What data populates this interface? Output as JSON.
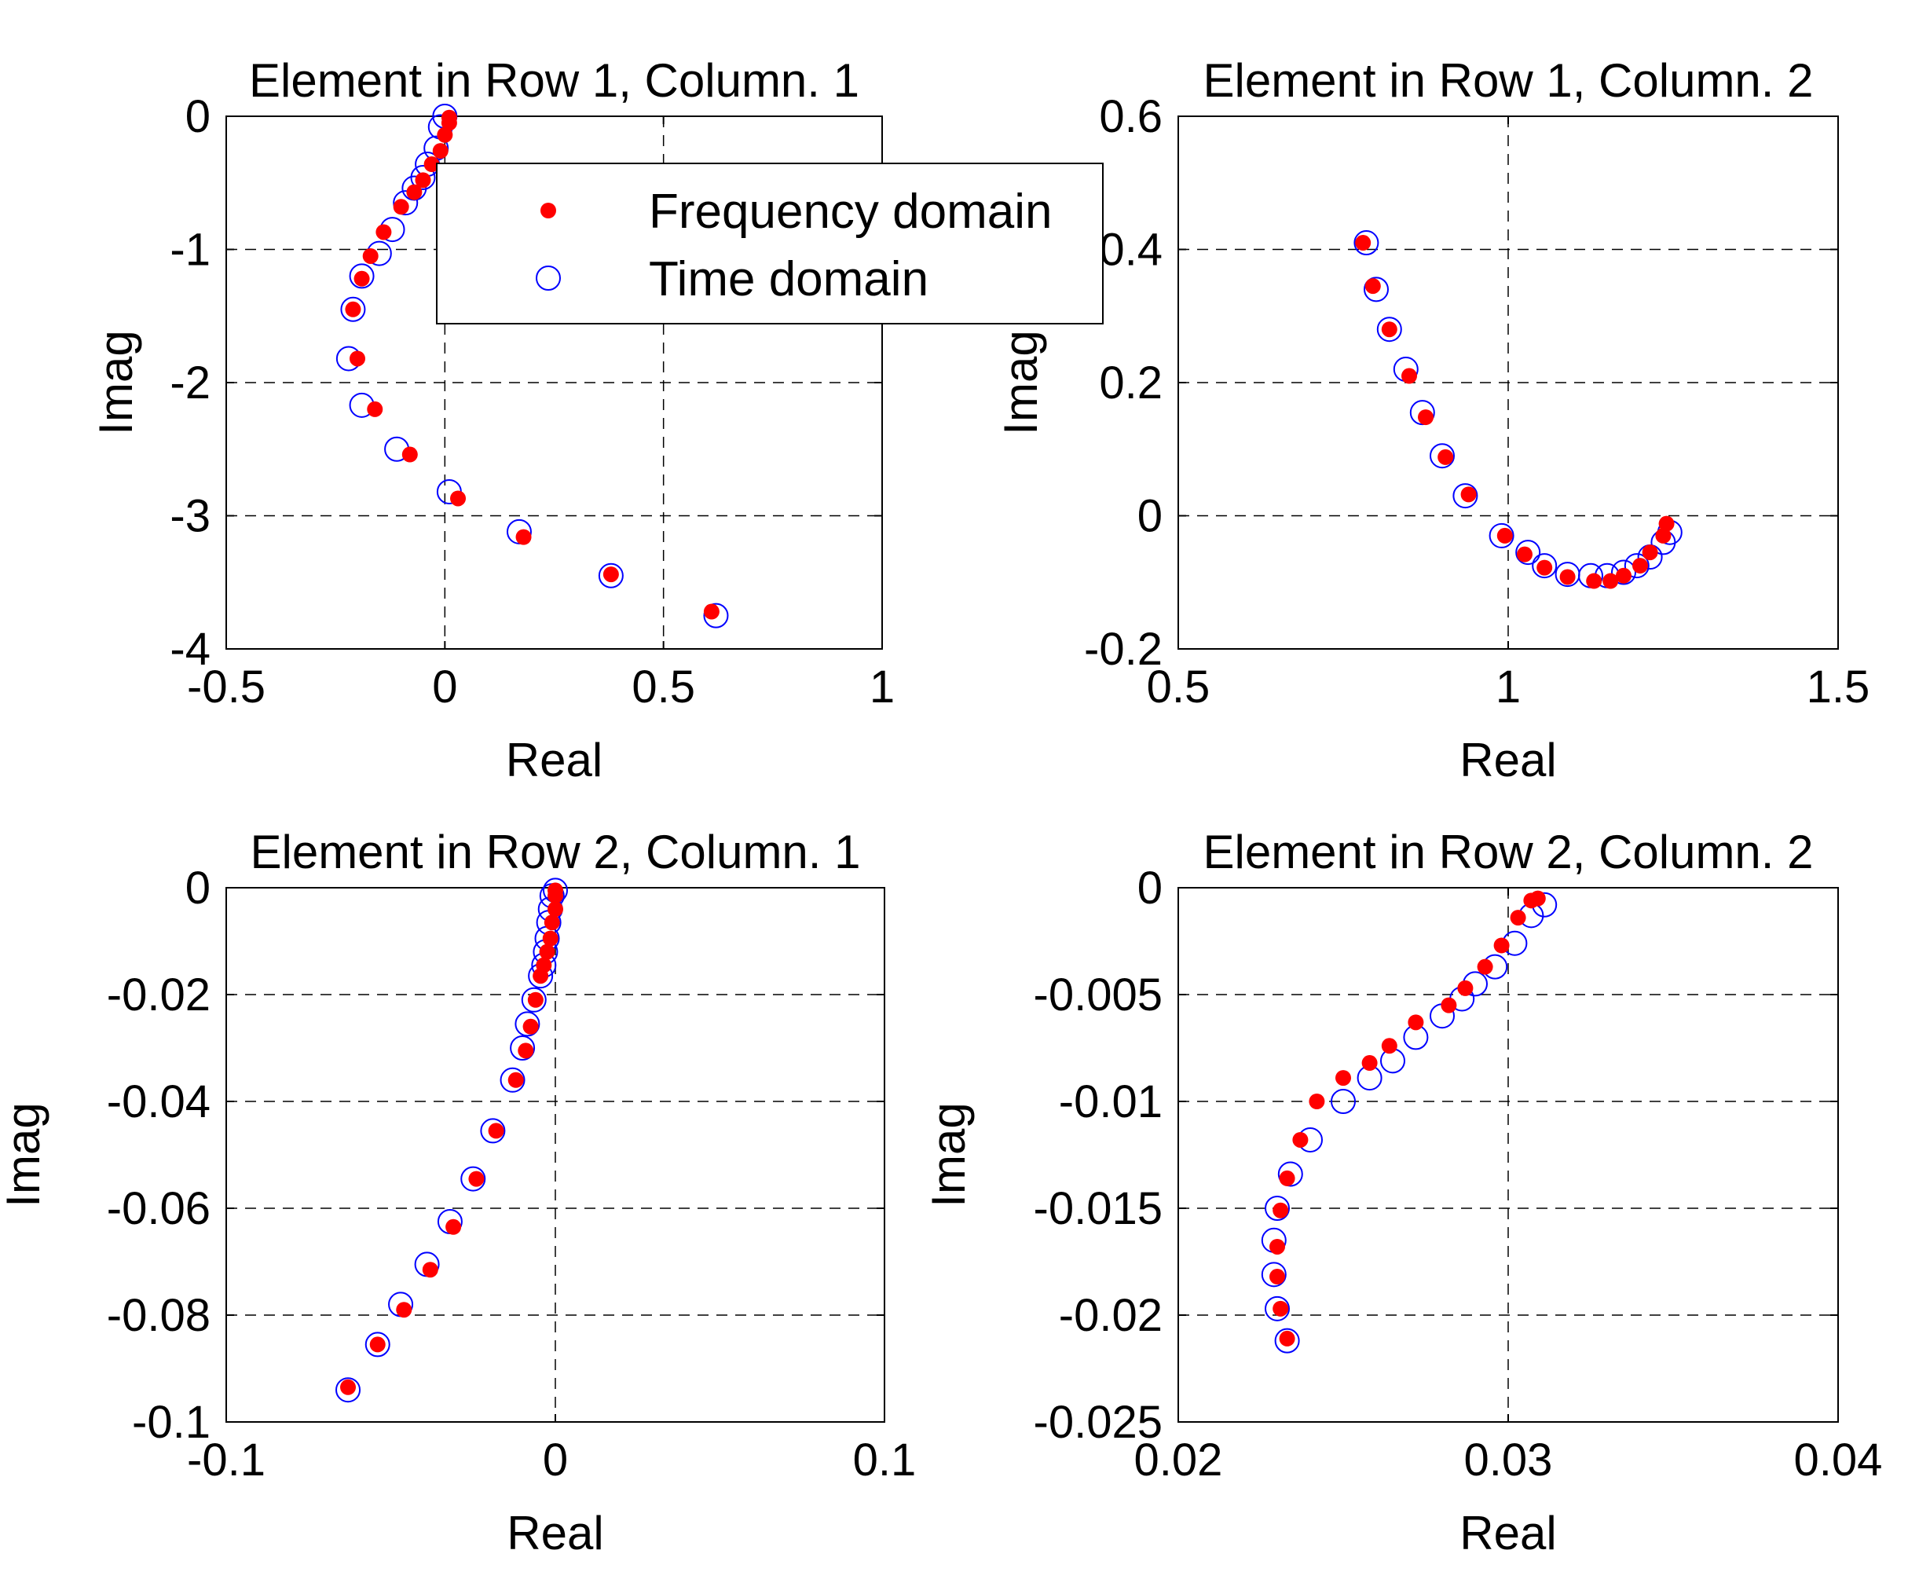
{
  "legend": {
    "items": [
      {
        "label": "Frequency domain",
        "marker": "filled-dot",
        "color": "#ff0000"
      },
      {
        "label": "Time domain",
        "marker": "open-circle",
        "color": "#0000ff"
      }
    ]
  },
  "chart_data": [
    {
      "type": "scatter",
      "title": "Element in Row 1, Column. 1",
      "xlabel": "Real",
      "ylabel": "Imag",
      "xlim": [
        -0.5,
        1
      ],
      "ylim": [
        -4,
        0
      ],
      "xticks": [
        -0.5,
        0,
        0.5,
        1
      ],
      "xtick_labels": [
        "-0.5",
        "0",
        "0.5",
        "1"
      ],
      "yticks": [
        -4,
        -3,
        -2,
        -1,
        0
      ],
      "ytick_labels": [
        "-4",
        "-3",
        "-2",
        "-1",
        "0"
      ],
      "grid": true,
      "series": [
        {
          "name": "Frequency domain",
          "color": "#ff0000",
          "marker": "filled-dot",
          "x": [
            0.61,
            0.38,
            0.18,
            0.03,
            -0.08,
            -0.16,
            -0.2,
            -0.21,
            -0.19,
            -0.17,
            -0.14,
            -0.1,
            -0.07,
            -0.05,
            -0.03,
            -0.01,
            0.0,
            0.01,
            0.01
          ],
          "y": [
            -3.72,
            -3.44,
            -3.16,
            -2.87,
            -2.54,
            -2.2,
            -1.82,
            -1.45,
            -1.22,
            -1.05,
            -0.87,
            -0.68,
            -0.57,
            -0.48,
            -0.36,
            -0.26,
            -0.14,
            -0.05,
            -0.01
          ]
        },
        {
          "name": "Time domain",
          "color": "#0000ff",
          "marker": "open-circle",
          "x": [
            0.62,
            0.38,
            0.17,
            0.01,
            -0.11,
            -0.19,
            -0.22,
            -0.21,
            -0.19,
            -0.15,
            -0.12,
            -0.09,
            -0.07,
            -0.05,
            -0.04,
            -0.02,
            -0.01,
            0.0
          ],
          "y": [
            -3.75,
            -3.45,
            -3.12,
            -2.82,
            -2.5,
            -2.17,
            -1.82,
            -1.45,
            -1.2,
            -1.03,
            -0.85,
            -0.65,
            -0.54,
            -0.46,
            -0.36,
            -0.24,
            -0.08,
            0.0
          ]
        }
      ]
    },
    {
      "type": "scatter",
      "title": "Element in Row 1, Column. 2",
      "xlabel": "Real",
      "ylabel": "Imag",
      "xlim": [
        0.5,
        1.5
      ],
      "ylim": [
        -0.2,
        0.6
      ],
      "xticks": [
        0.5,
        1,
        1.5
      ],
      "xtick_labels": [
        "0.5",
        "1",
        "1.5"
      ],
      "yticks": [
        -0.2,
        0,
        0.2,
        0.4,
        0.6
      ],
      "ytick_labels": [
        "-0.2",
        "0",
        "0.2",
        "0.4",
        "0.6"
      ],
      "grid": true,
      "series": [
        {
          "name": "Frequency domain",
          "color": "#ff0000",
          "marker": "filled-dot",
          "x": [
            0.78,
            0.795,
            0.82,
            0.85,
            0.875,
            0.905,
            0.94,
            0.995,
            1.025,
            1.055,
            1.09,
            1.13,
            1.155,
            1.175,
            1.2,
            1.215,
            1.235,
            1.24
          ],
          "y": [
            0.41,
            0.345,
            0.28,
            0.21,
            0.148,
            0.088,
            0.032,
            -0.03,
            -0.058,
            -0.078,
            -0.092,
            -0.098,
            -0.098,
            -0.09,
            -0.075,
            -0.055,
            -0.03,
            -0.012
          ]
        },
        {
          "name": "Time domain",
          "color": "#0000ff",
          "marker": "open-circle",
          "x": [
            0.785,
            0.8,
            0.82,
            0.845,
            0.87,
            0.9,
            0.935,
            0.99,
            1.03,
            1.055,
            1.09,
            1.125,
            1.15,
            1.175,
            1.195,
            1.215,
            1.235,
            1.245
          ],
          "y": [
            0.41,
            0.34,
            0.28,
            0.22,
            0.155,
            0.09,
            0.03,
            -0.03,
            -0.055,
            -0.075,
            -0.088,
            -0.09,
            -0.09,
            -0.085,
            -0.075,
            -0.062,
            -0.04,
            -0.025
          ]
        }
      ]
    },
    {
      "type": "scatter",
      "title": "Element in Row 2, Column. 1",
      "xlabel": "Real",
      "ylabel": "Imag",
      "xlim": [
        -0.1,
        0.1
      ],
      "ylim": [
        -0.1,
        0
      ],
      "xticks": [
        -0.1,
        0,
        0.1
      ],
      "xtick_labels": [
        "-0.1",
        "0",
        "0.1"
      ],
      "yticks": [
        -0.1,
        -0.08,
        -0.06,
        -0.04,
        -0.02,
        0
      ],
      "ytick_labels": [
        "-0.1",
        "-0.08",
        "-0.06",
        "-0.04",
        "-0.02",
        "0"
      ],
      "grid": true,
      "series": [
        {
          "name": "Frequency domain",
          "color": "#ff0000",
          "marker": "filled-dot",
          "x": [
            -0.063,
            -0.054,
            -0.046,
            -0.038,
            -0.031,
            -0.024,
            -0.018,
            -0.012,
            -0.009,
            -0.0075,
            -0.006,
            -0.0045,
            -0.0035,
            -0.0025,
            -0.0015,
            -0.001,
            0.0,
            0.0,
            0.0
          ],
          "y": [
            -0.0935,
            -0.0855,
            -0.079,
            -0.0715,
            -0.0635,
            -0.0545,
            -0.0455,
            -0.036,
            -0.0305,
            -0.026,
            -0.021,
            -0.0165,
            -0.0145,
            -0.012,
            -0.0095,
            -0.0065,
            -0.004,
            -0.0015,
            -0.0005
          ]
        },
        {
          "name": "Time domain",
          "color": "#0000ff",
          "marker": "open-circle",
          "x": [
            -0.063,
            -0.054,
            -0.047,
            -0.039,
            -0.032,
            -0.025,
            -0.019,
            -0.013,
            -0.01,
            -0.0085,
            -0.0065,
            -0.0045,
            -0.0035,
            -0.003,
            -0.0025,
            -0.002,
            -0.0015,
            -0.001,
            0.0
          ],
          "y": [
            -0.094,
            -0.0855,
            -0.078,
            -0.0705,
            -0.0625,
            -0.0545,
            -0.0455,
            -0.036,
            -0.03,
            -0.0255,
            -0.021,
            -0.0165,
            -0.0145,
            -0.012,
            -0.0095,
            -0.0065,
            -0.004,
            -0.0015,
            -0.0005
          ]
        }
      ]
    },
    {
      "type": "scatter",
      "title": "Element in Row 2, Column. 2",
      "xlabel": "Real",
      "ylabel": "Imag",
      "xlim": [
        0.02,
        0.04
      ],
      "ylim": [
        -0.025,
        0
      ],
      "xticks": [
        0.02,
        0.03,
        0.04
      ],
      "xtick_labels": [
        "0.02",
        "0.03",
        "0.04"
      ],
      "yticks": [
        -0.025,
        -0.02,
        -0.015,
        -0.01,
        -0.005,
        0
      ],
      "ytick_labels": [
        "-0.025",
        "-0.02",
        "-0.015",
        "-0.01",
        "-0.005",
        "0"
      ],
      "grid": true,
      "series": [
        {
          "name": "Frequency domain",
          "color": "#ff0000",
          "marker": "filled-dot",
          "x": [
            0.0233,
            0.0231,
            0.023,
            0.023,
            0.0231,
            0.0233,
            0.0237,
            0.0242,
            0.025,
            0.0258,
            0.0264,
            0.0272,
            0.0282,
            0.0287,
            0.0293,
            0.0298,
            0.0303,
            0.0307,
            0.0309
          ],
          "y": [
            -0.0211,
            -0.0197,
            -0.0182,
            -0.0168,
            -0.0151,
            -0.0136,
            -0.0118,
            -0.01,
            -0.0089,
            -0.0082,
            -0.0074,
            -0.0063,
            -0.0055,
            -0.0047,
            -0.0037,
            -0.0027,
            -0.0014,
            -0.0006,
            -0.0005
          ]
        },
        {
          "name": "Time domain",
          "color": "#0000ff",
          "marker": "open-circle",
          "x": [
            0.0233,
            0.023,
            0.0229,
            0.0229,
            0.023,
            0.0234,
            0.024,
            0.025,
            0.0258,
            0.0265,
            0.0272,
            0.028,
            0.0286,
            0.029,
            0.0296,
            0.0302,
            0.0307,
            0.0311
          ],
          "y": [
            -0.0212,
            -0.0197,
            -0.0181,
            -0.0165,
            -0.015,
            -0.0134,
            -0.0118,
            -0.01,
            -0.0089,
            -0.0081,
            -0.007,
            -0.006,
            -0.0052,
            -0.0045,
            -0.0037,
            -0.0026,
            -0.0013,
            -0.0008
          ]
        }
      ]
    }
  ]
}
